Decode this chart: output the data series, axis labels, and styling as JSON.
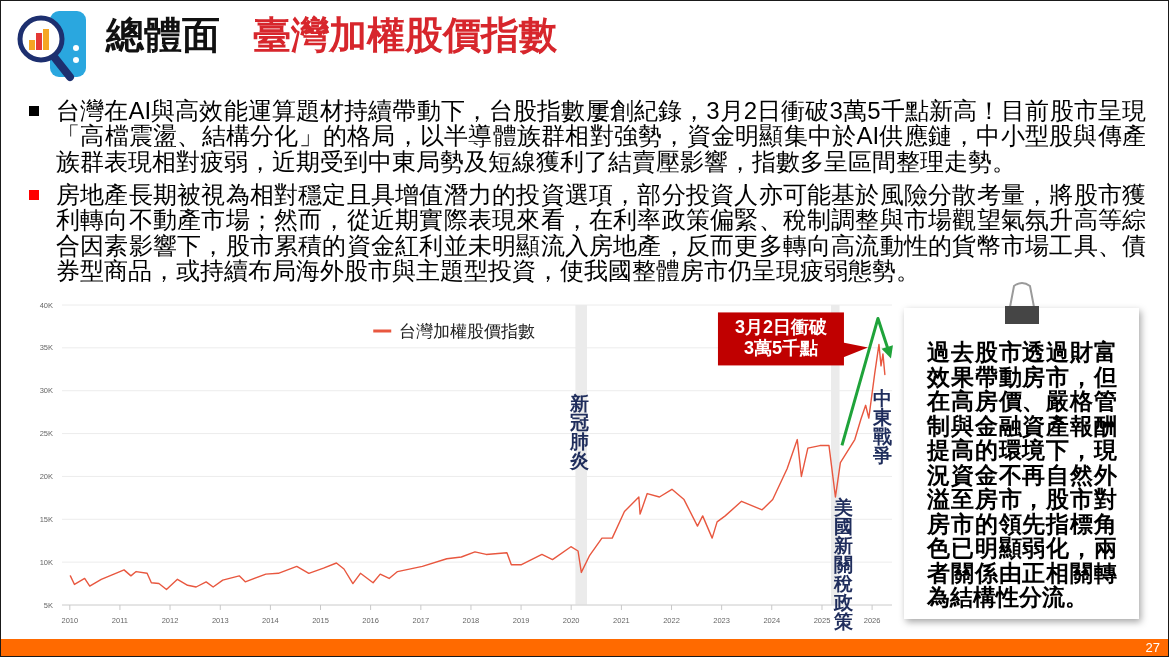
{
  "chart_data": {
    "type": "line",
    "title": "總體面",
    "subtitle": "臺灣加權股價指數",
    "xlim": [
      "2009-11-05",
      "2026-05-26"
    ],
    "ylim": [
      5000,
      40000
    ],
    "xticks": [
      "2010",
      "2011",
      "2012",
      "2013",
      "2014",
      "2015",
      "2016",
      "2017",
      "2018",
      "2019",
      "2020",
      "2021",
      "2022",
      "2023",
      "2024",
      "2025",
      "2026"
    ],
    "yticks": [
      {
        "value": 5000,
        "label": "5K"
      },
      {
        "value": 10000,
        "label": "10K"
      },
      {
        "value": 15000,
        "label": "15K"
      },
      {
        "value": 20000,
        "label": "20K"
      },
      {
        "value": 25000,
        "label": "25K"
      },
      {
        "value": 30000,
        "label": "30K"
      },
      {
        "value": 35000,
        "label": "35K"
      },
      {
        "value": 40000,
        "label": "40K"
      }
    ],
    "grid": "y",
    "legend": "top",
    "series": [
      {
        "name": "台灣加權股價指數",
        "color": "#e8573f",
        "x": [
          "2010-01-05",
          "2010-02-04",
          "2010-04-19",
          "2010-05-26",
          "2010-08-18",
          "2011-01-01",
          "2011-01-31",
          "2011-03-22",
          "2011-04-29",
          "2011-07-18",
          "2011-08-18",
          "2011-10-12",
          "2011-12-06",
          "2012-02-24",
          "2012-05-08",
          "2012-07-09",
          "2012-09-20",
          "2012-11-10",
          "2013-01-19",
          "2013-05-19",
          "2013-07-02",
          "2013-11-29",
          "2014-02-28",
          "2014-07-12",
          "2014-10-08",
          "2015-01-23",
          "2015-04-27",
          "2015-06-21",
          "2015-08-25",
          "2015-10-19",
          "2016-01-19",
          "2016-03-11",
          "2016-05-15",
          "2016-07-15",
          "2017-01-12",
          "2017-07-09",
          "2017-10-23",
          "2018-01-30",
          "2018-04-22",
          "2018-09-20",
          "2018-10-22",
          "2019-01-04",
          "2019-06-02",
          "2019-08-18",
          "2019-12-30",
          "2020-02-20",
          "2020-03-15",
          "2020-05-15",
          "2020-08-12",
          "2020-10-26",
          "2021-01-23",
          "2021-05-08",
          "2021-05-17",
          "2021-07-08",
          "2021-10-05",
          "2022-01-04",
          "2022-04-02",
          "2022-07-09",
          "2022-08-16",
          "2022-10-24",
          "2022-11-29",
          "2023-01-27",
          "2023-05-26",
          "2023-10-23",
          "2024-01-08",
          "2024-04-22",
          "2024-07-05",
          "2024-08-04",
          "2024-09-20",
          "2024-12-17",
          "2025-02-21",
          "2025-04-09",
          "2025-05-15",
          "2025-08-28",
          "2025-10-12",
          "2025-11-15",
          "2025-12-08",
          "2026-01-20",
          "2026-02-20",
          "2026-03-07",
          "2026-03-21",
          "2026-04-04"
        ],
        "values": [
          8400,
          7400,
          8100,
          7200,
          8000,
          8900,
          9100,
          8400,
          8900,
          8700,
          7600,
          7500,
          6800,
          8000,
          7300,
          7100,
          7700,
          7100,
          7900,
          8400,
          7700,
          8600,
          8700,
          9500,
          8700,
          9300,
          9900,
          9200,
          7500,
          8700,
          7600,
          8600,
          8100,
          8900,
          9500,
          10400,
          10600,
          11200,
          10900,
          11100,
          9700,
          9700,
          10900,
          10300,
          11800,
          11300,
          8800,
          10800,
          12800,
          12800,
          15900,
          17600,
          15600,
          18000,
          17600,
          18500,
          17300,
          14200,
          15400,
          12800,
          14700,
          15400,
          17100,
          16100,
          17300,
          20900,
          24300,
          20000,
          23300,
          23600,
          23600,
          17600,
          21600,
          24300,
          26700,
          28300,
          26800,
          32000,
          35400,
          32900,
          34300,
          31900
        ]
      }
    ],
    "bands": [
      {
        "axis": "x",
        "from": "2020-02-01",
        "to": "2020-04-25",
        "label": "新冠肺炎",
        "color": "#ebebeb"
      },
      {
        "axis": "x",
        "from": "2025-03-08",
        "to": "2025-05-09",
        "label": "美國新關稅政策",
        "color": "#ebebeb"
      }
    ],
    "annotations": [
      "台灣在AI與高效能運算題材持續帶動下，台股指數屢創紀錄，3月2日衝破3萬5千點新高！目前股市呈現「高檔震盪、結構分化」的格局，以半導體族群相對強勢，資金明顯集中於AI供應鏈，中小型股與傳產族群表現相對疲弱，近期受到中東局勢及短線獲利了結賣壓影響，指數多呈區間整理走勢。",
      "房地產長期被視為相對穩定且具增值潛力的投資選項，部分投資人亦可能基於風險分散考量，將股市獲利轉向不動產市場；然而，從近期實際表現來看，在利率政策偏緊、稅制調整與市場觀望氣氛升高等綜合因素影響下，股市累積的資金紅利並未明顯流入房地產，反而更多轉向高流動性的貨幣市場工具、債券型商品，或持續布局海外股市與主題型投資，使我國整體房市仍呈現疲弱態勢。",
      {
        "text": "3月2日衝破3萬5千點",
        "x": "2026-02-20",
        "y": 35400
      },
      {
        "text": "中東戰爭",
        "x": "2026-03-07",
        "y": 32900
      },
      "過去股市透過財富效果帶動房市，但在高房價、嚴格管制與金融資產報酬提高的環境下，現況資金不再自然外溢至房市，股市對房市的領先指標角色已明顯弱化，兩者關係由正相關轉為結構性分流。",
      "27"
    ]
  }
}
